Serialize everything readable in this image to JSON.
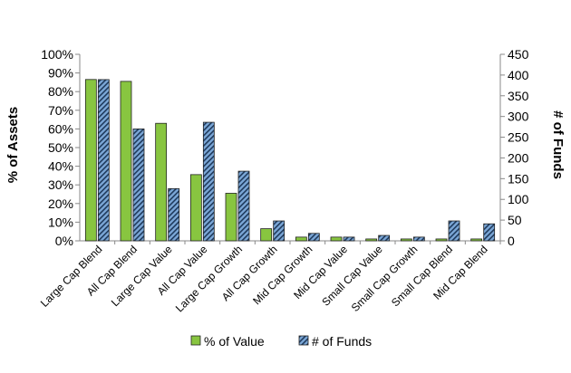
{
  "chart_data": {
    "type": "bar",
    "categories": [
      "Large Cap Blend",
      "All Cap Blend",
      "Large Cap Value",
      "All Cap Value",
      "Large Cap Growth",
      "All Cap Growth",
      "Mid Cap Growth",
      "Mid Cap Value",
      "Small Cap Value",
      "Small Cap Growth",
      "Small Cap Blend",
      "Mid Cap Blend"
    ],
    "series": [
      {
        "name": "% of Value",
        "axis": "left",
        "color": "#88c540",
        "values": [
          86.5,
          85.5,
          63,
          35.5,
          25.5,
          6.5,
          2,
          2,
          1,
          1,
          1,
          1
        ]
      },
      {
        "name": "# of Funds",
        "axis": "right",
        "color": "#7ba7d7",
        "pattern": "diagonal-stripes",
        "values": [
          389,
          270,
          126,
          286,
          168,
          48,
          18,
          9,
          13,
          9,
          48,
          41
        ]
      }
    ],
    "ylabel_left": "% of Assets",
    "ylabel_right": "# of Funds",
    "ylim_left": [
      0,
      100
    ],
    "ylim_right": [
      0,
      450
    ],
    "yticks_left": [
      "0%",
      "10%",
      "20%",
      "30%",
      "40%",
      "50%",
      "60%",
      "70%",
      "80%",
      "90%",
      "100%"
    ],
    "yticks_right": [
      "0",
      "50",
      "100",
      "150",
      "200",
      "250",
      "300",
      "350",
      "400",
      "450"
    ],
    "grid": false,
    "legend_position": "bottom"
  }
}
